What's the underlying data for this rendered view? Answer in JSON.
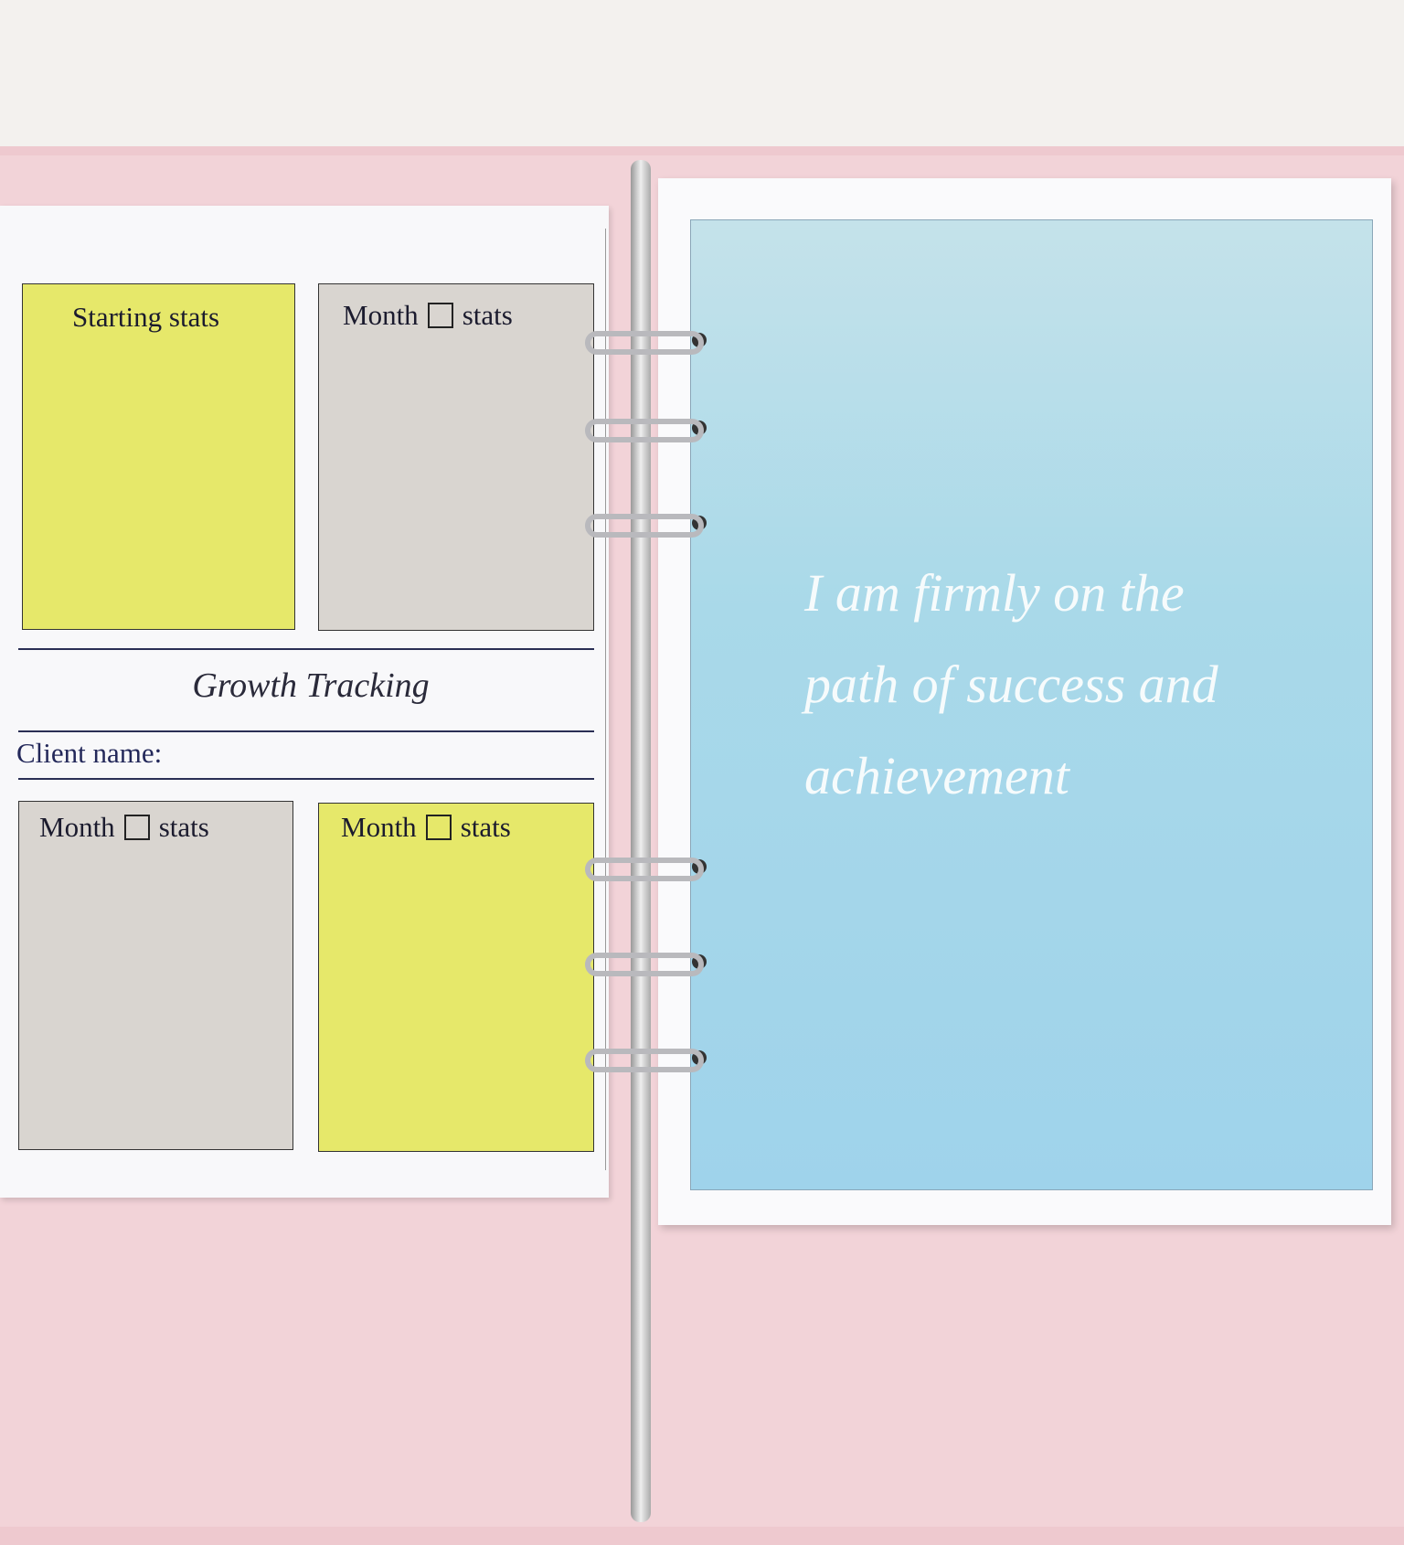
{
  "left_page": {
    "boxes": [
      {
        "label": "Starting stats"
      },
      {
        "label_before": "Month",
        "label_after": "stats"
      },
      {
        "label_before": "Month",
        "label_after": "stats"
      },
      {
        "label_before": "Month",
        "label_after": "stats"
      }
    ],
    "section_title": "Growth Tracking",
    "client_label": "Client name:"
  },
  "right_page": {
    "quote_lines": [
      "I am firmly on the",
      "path of success and",
      "achievement"
    ]
  }
}
